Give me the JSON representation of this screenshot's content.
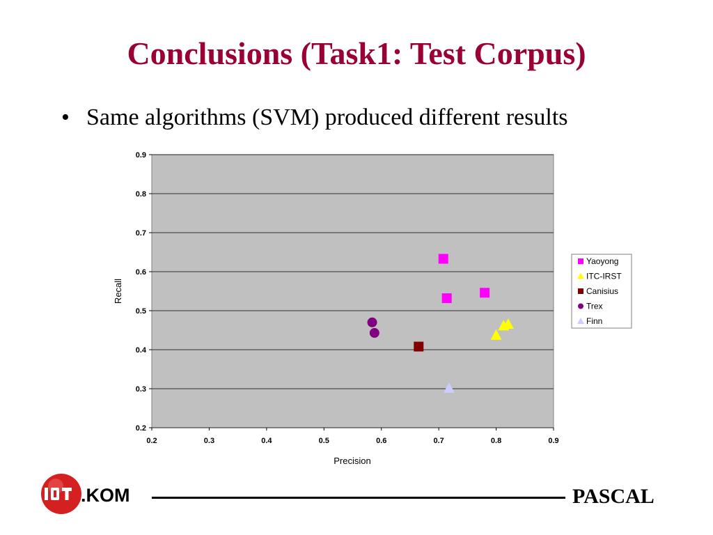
{
  "slide": {
    "title": "Conclusions (Task1: Test Corpus)",
    "bullet_symbol": "•",
    "bullet_text": "Same algorithms (SVM) produced different results",
    "footer_logo_text": ".KOM",
    "footer_brand": "PASCAL",
    "colors": {
      "title": "#990033",
      "logo_red": "#d42020"
    }
  },
  "chart_data": {
    "type": "scatter",
    "xlabel": "Precision",
    "ylabel": "Recall",
    "xlim": [
      0.2,
      0.9
    ],
    "ylim": [
      0.2,
      0.9
    ],
    "x_ticks": [
      "0.2",
      "0.3",
      "0.4",
      "0.5",
      "0.6",
      "0.7",
      "0.8",
      "0.9"
    ],
    "y_ticks": [
      "0.2",
      "0.3",
      "0.4",
      "0.5",
      "0.6",
      "0.7",
      "0.8",
      "0.9"
    ],
    "grid": "horizontal",
    "plot_background": "#c0c0c0",
    "legend_position": "right",
    "series": [
      {
        "name": "Yaoyong",
        "marker": "square",
        "color": "#ff00ff",
        "points": [
          [
            0.708,
            0.633
          ],
          [
            0.714,
            0.532
          ],
          [
            0.78,
            0.546
          ]
        ]
      },
      {
        "name": "ITC-IRST",
        "marker": "triangle",
        "color": "#ffff00",
        "points": [
          [
            0.8,
            0.438
          ],
          [
            0.813,
            0.462
          ],
          [
            0.821,
            0.466
          ]
        ]
      },
      {
        "name": "Canisius",
        "marker": "square",
        "color": "#800000",
        "points": [
          [
            0.665,
            0.408
          ]
        ]
      },
      {
        "name": "Trex",
        "marker": "circle",
        "color": "#800080",
        "points": [
          [
            0.584,
            0.47
          ],
          [
            0.588,
            0.443
          ]
        ]
      },
      {
        "name": "Finn",
        "marker": "triangle",
        "color": "#ccccff",
        "points": [
          [
            0.718,
            0.302
          ]
        ]
      }
    ]
  }
}
